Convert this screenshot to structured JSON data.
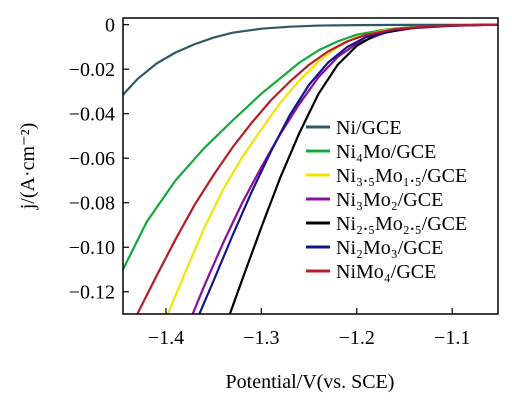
{
  "chart_data": {
    "type": "line",
    "xlabel": "Potential/V(vs. SCE)",
    "ylabel": "j/(A·cm⁻²)",
    "xlim": [
      -1.445,
      -1.052
    ],
    "ylim": [
      -0.13,
      0.003
    ],
    "x_ticks": [
      -1.4,
      -1.3,
      -1.2,
      -1.1
    ],
    "x_tick_labels": [
      "−1.4",
      "−1.3",
      "−1.2",
      "−1.1"
    ],
    "y_ticks": [
      0,
      -0.02,
      -0.04,
      -0.06,
      -0.08,
      -0.1,
      -0.12
    ],
    "y_tick_labels": [
      "0",
      "−0.02",
      "−0.04",
      "−0.06",
      "−0.08",
      "−0.10",
      "−0.12"
    ],
    "grid": false,
    "legend_position": "right",
    "series": [
      {
        "name": "Ni/GCE",
        "color": "#2e5866",
        "x": [
          -1.445,
          -1.43,
          -1.41,
          -1.39,
          -1.37,
          -1.35,
          -1.33,
          -1.3,
          -1.27,
          -1.24,
          -1.2,
          -1.15,
          -1.1,
          -1.052
        ],
        "y": [
          -0.0315,
          -0.0245,
          -0.0175,
          -0.0125,
          -0.0088,
          -0.0058,
          -0.0036,
          -0.0018,
          -0.0009,
          -0.0004,
          -0.0002,
          -0.0001,
          -5e-05,
          0
        ]
      },
      {
        "name": "Ni₄Mo/GCE",
        "color": "#14a83c",
        "x": [
          -1.445,
          -1.42,
          -1.39,
          -1.36,
          -1.33,
          -1.3,
          -1.28,
          -1.26,
          -1.24,
          -1.22,
          -1.2,
          -1.17,
          -1.14,
          -1.1,
          -1.052
        ],
        "y": [
          -0.11,
          -0.0885,
          -0.07,
          -0.0555,
          -0.043,
          -0.031,
          -0.024,
          -0.017,
          -0.0115,
          -0.0075,
          -0.0045,
          -0.0022,
          -0.001,
          -0.0004,
          0
        ]
      },
      {
        "name": "Ni₃.₅Mo₁.₅/GCE",
        "color": "#f2e600",
        "x": [
          -1.398,
          -1.38,
          -1.36,
          -1.34,
          -1.32,
          -1.3,
          -1.28,
          -1.26,
          -1.24,
          -1.22,
          -1.2,
          -1.17,
          -1.14,
          -1.1,
          -1.052
        ],
        "y": [
          -0.13,
          -0.1115,
          -0.0915,
          -0.074,
          -0.0595,
          -0.047,
          -0.035,
          -0.025,
          -0.0165,
          -0.01,
          -0.0055,
          -0.0025,
          -0.0012,
          -0.0004,
          0
        ]
      },
      {
        "name": "Ni₃Mo₂/GCE",
        "color": "#8a0f9e",
        "x": [
          -1.372,
          -1.36,
          -1.34,
          -1.32,
          -1.3,
          -1.28,
          -1.26,
          -1.24,
          -1.22,
          -1.2,
          -1.17,
          -1.14,
          -1.1,
          -1.052
        ],
        "y": [
          -0.13,
          -0.1175,
          -0.098,
          -0.08,
          -0.064,
          -0.049,
          -0.0355,
          -0.0235,
          -0.0145,
          -0.0085,
          -0.0035,
          -0.0015,
          -0.0005,
          0
        ]
      },
      {
        "name": "Ni₂.₅Mo₂.₅/GCE",
        "color": "#000000",
        "x": [
          -1.333,
          -1.32,
          -1.3,
          -1.28,
          -1.26,
          -1.24,
          -1.22,
          -1.2,
          -1.18,
          -1.15,
          -1.12,
          -1.08,
          -1.052
        ],
        "y": [
          -0.13,
          -0.1145,
          -0.091,
          -0.0685,
          -0.0485,
          -0.031,
          -0.018,
          -0.0095,
          -0.0045,
          -0.0018,
          -0.0007,
          -0.0002,
          0
        ]
      },
      {
        "name": "Ni₂Mo₃/GCE",
        "color": "#16148c",
        "x": [
          -1.365,
          -1.35,
          -1.33,
          -1.31,
          -1.29,
          -1.27,
          -1.25,
          -1.23,
          -1.21,
          -1.19,
          -1.16,
          -1.13,
          -1.1,
          -1.052
        ],
        "y": [
          -0.13,
          -0.115,
          -0.0945,
          -0.075,
          -0.057,
          -0.0405,
          -0.027,
          -0.017,
          -0.01,
          -0.0055,
          -0.0022,
          -0.0009,
          -0.0003,
          0
        ]
      },
      {
        "name": "NiMo₄/GCE",
        "color": "#b81c2a",
        "x": [
          -1.43,
          -1.41,
          -1.39,
          -1.37,
          -1.35,
          -1.33,
          -1.31,
          -1.29,
          -1.27,
          -1.25,
          -1.23,
          -1.21,
          -1.19,
          -1.16,
          -1.13,
          -1.1,
          -1.052
        ],
        "y": [
          -0.13,
          -0.113,
          -0.0965,
          -0.081,
          -0.0675,
          -0.055,
          -0.044,
          -0.034,
          -0.0255,
          -0.018,
          -0.012,
          -0.0075,
          -0.0045,
          -0.002,
          -0.0009,
          -0.0003,
          0
        ]
      }
    ]
  }
}
